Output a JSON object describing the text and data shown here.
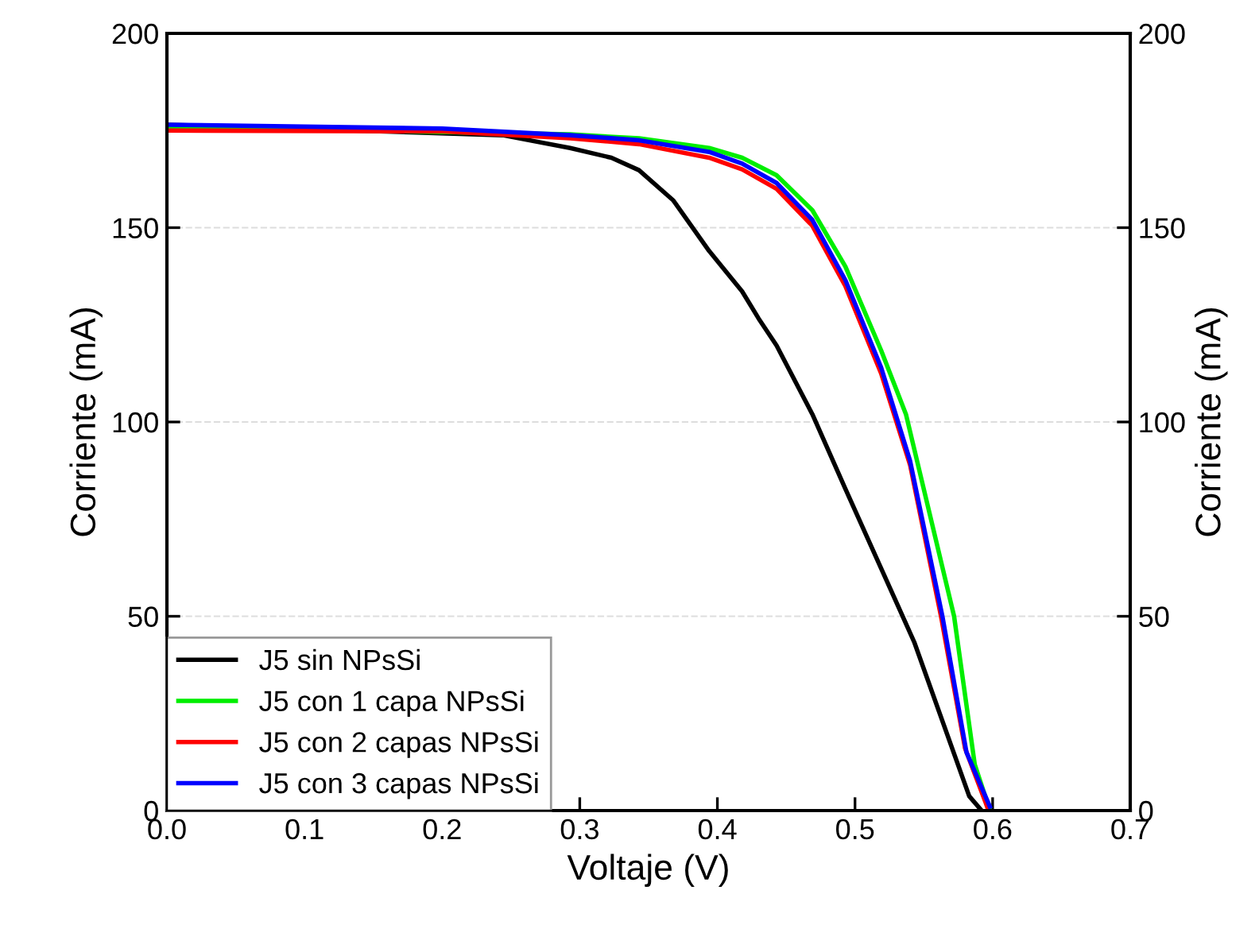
{
  "chart_data": {
    "type": "line",
    "xlabel": "Voltaje (V)",
    "ylabel": "Corriente (mA)",
    "y2label": "Corriente (mA)",
    "xlim": [
      0,
      0.7
    ],
    "xticks": [
      {
        "value": 0,
        "label": "0.0"
      },
      0.1,
      0.2,
      0.3,
      0.4,
      0.5,
      0.6,
      0.7
    ],
    "ylim": [
      0,
      200
    ],
    "yticks": [
      0,
      50,
      100,
      150,
      200
    ],
    "y2lim": [
      0,
      200
    ],
    "y2ticks": [
      0,
      50,
      100,
      150,
      200
    ],
    "grid": "y",
    "legend": "bottom left",
    "line_style": "solid",
    "series": [
      {
        "name": "J5 sin NPsSi",
        "color": "#000000",
        "x": [
          0,
          0.244,
          0.293,
          0.323,
          0.343,
          0.368,
          0.394,
          0.418,
          0.43,
          0.443,
          0.469,
          0.493,
          0.543,
          0.583,
          0.592
        ],
        "values": [
          176.5,
          173.8,
          170.5,
          168,
          164.8,
          157,
          144,
          133.6,
          126.6,
          119.7,
          102,
          82.8,
          43.4,
          3.7,
          0
        ]
      },
      {
        "name": "J5 con 1 capa NPsSi",
        "color": "#00ee00",
        "x": [
          0,
          0.293,
          0.343,
          0.394,
          0.418,
          0.443,
          0.469,
          0.493,
          0.519,
          0.537,
          0.572,
          0.587,
          0.598
        ],
        "values": [
          176,
          174,
          173,
          170.5,
          168,
          163.5,
          154.5,
          140,
          118.4,
          102,
          50,
          11.9,
          0
        ]
      },
      {
        "name": "J5 con 2 capas NPsSi",
        "color": "#ff0000",
        "x": [
          0,
          0.2,
          0.293,
          0.343,
          0.394,
          0.418,
          0.443,
          0.469,
          0.493,
          0.519,
          0.54,
          0.5625,
          0.58,
          0.595,
          0.597
        ],
        "values": [
          175,
          174.8,
          173,
          171.5,
          168,
          165,
          160,
          150.5,
          135,
          112.5,
          89,
          50,
          16,
          2,
          0
        ]
      },
      {
        "name": "J5 con 3 capas NPsSi",
        "color": "#0000ff",
        "x": [
          0,
          0.2,
          0.293,
          0.343,
          0.394,
          0.418,
          0.443,
          0.469,
          0.493,
          0.519,
          0.54,
          0.5635,
          0.581,
          0.598
        ],
        "values": [
          176.5,
          175.5,
          173.8,
          172.5,
          169.5,
          166.5,
          161.5,
          152,
          136.5,
          114,
          90,
          50,
          15,
          1
        ]
      }
    ]
  }
}
